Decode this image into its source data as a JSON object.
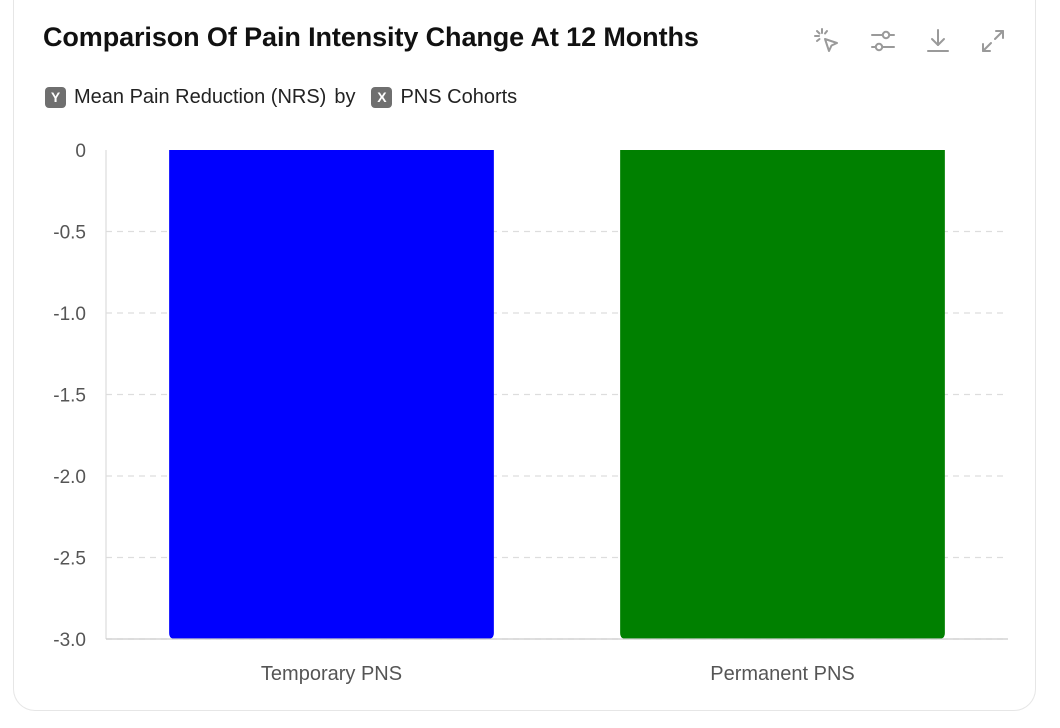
{
  "header": {
    "title": "Comparison Of Pain Intensity Change At 12 Months",
    "y_badge": "Y",
    "y_field": "Mean Pain Reduction (NRS)",
    "by_text": "by",
    "x_badge": "X",
    "x_field": "PNS Cohorts"
  },
  "toolbar": {
    "icons": [
      "cursor-click-icon",
      "sliders-icon",
      "download-icon",
      "expand-icon"
    ],
    "icon_color": "#9a9a9a"
  },
  "chart_data": {
    "type": "bar",
    "categories": [
      "Temporary PNS",
      "Permanent PNS"
    ],
    "values": [
      -3.0,
      -3.0
    ],
    "colors": [
      "#0000ff",
      "#008000"
    ],
    "title": "Comparison Of Pain Intensity Change At 12 Months",
    "xlabel": "PNS Cohorts",
    "ylabel": "Mean Pain Reduction (NRS)",
    "ylim": [
      -3.0,
      0
    ],
    "yticks": [
      "0",
      "-0.5",
      "-1.0",
      "-1.5",
      "-2.0",
      "-2.5",
      "-3.0"
    ],
    "ytick_values": [
      0,
      -0.5,
      -1.0,
      -1.5,
      -2.0,
      -2.5,
      -3.0
    ],
    "grid": true
  }
}
